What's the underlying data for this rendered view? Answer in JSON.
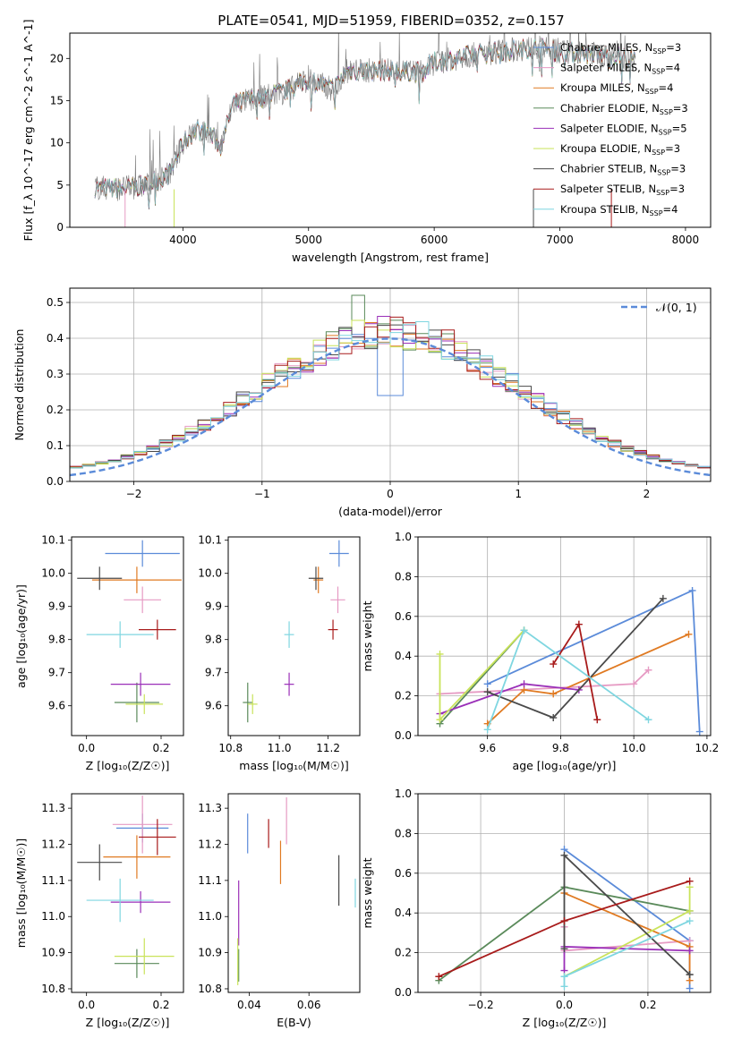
{
  "figure_title": "PLATE=0541, MJD=51959, FIBERID=0352, z=0.157",
  "colors": {
    "Chabrier MILES": "#5b8bd9",
    "Salpeter MILES": "#e69ac3",
    "Kroupa MILES": "#e07a22",
    "Chabrier ELODIE": "#5a8a5a",
    "Salpeter ELODIE": "#9a2fb8",
    "Kroupa ELODIE": "#c9e35a",
    "Chabrier STELIB": "#4a4a4a",
    "Salpeter STELIB": "#a81b1b",
    "Kroupa STELIB": "#7fd6e0",
    "gaussian": "#5b8bd9",
    "grid": "#b0b0b0"
  },
  "chart_data": [
    {
      "id": "spectrum",
      "type": "line",
      "xlabel": "wavelength [Angstrom, rest frame]",
      "ylabel": "Flux [f_λ 10^-17 erg cm^-2 s^-1 A^-1]",
      "xlim": [
        3100,
        8200
      ],
      "ylim": [
        0,
        23
      ],
      "xticks": [
        4000,
        5000,
        6000,
        7000,
        8000
      ],
      "yticks": [
        0,
        5,
        10,
        15,
        20
      ],
      "legend_position": "top-right",
      "legend": [
        {
          "name": "Chabrier MILES",
          "nssp": "3"
        },
        {
          "name": "Salpeter MILES",
          "nssp": "4"
        },
        {
          "name": "Kroupa MILES",
          "nssp": "4"
        },
        {
          "name": "Chabrier ELODIE",
          "nssp": "3"
        },
        {
          "name": "Salpeter ELODIE",
          "nssp": "5"
        },
        {
          "name": "Kroupa ELODIE",
          "nssp": "3"
        },
        {
          "name": "Chabrier STELIB",
          "nssp": "3"
        },
        {
          "name": "Salpeter STELIB",
          "nssp": "3"
        },
        {
          "name": "Kroupa STELIB",
          "nssp": "4"
        }
      ],
      "continuum": [
        [
          3300,
          4.7
        ],
        [
          3500,
          4.6
        ],
        [
          3700,
          4.9
        ],
        [
          3900,
          6.4
        ],
        [
          4000,
          10.0
        ],
        [
          4100,
          11.5
        ],
        [
          4200,
          11.3
        ],
        [
          4300,
          9.5
        ],
        [
          4400,
          14.6
        ],
        [
          4600,
          15.3
        ],
        [
          4800,
          16.0
        ],
        [
          5000,
          17.5
        ],
        [
          5200,
          16.3
        ],
        [
          5300,
          18.5
        ],
        [
          5600,
          18.6
        ],
        [
          5900,
          18.4
        ],
        [
          6000,
          19.5
        ],
        [
          6300,
          20.4
        ],
        [
          6600,
          21.0
        ],
        [
          6800,
          21.3
        ],
        [
          7000,
          20.8
        ],
        [
          7200,
          20.6
        ],
        [
          7400,
          20.4
        ],
        [
          7600,
          19.9
        ]
      ]
    },
    {
      "id": "residuals",
      "type": "histogram",
      "xlabel": "(data-model)/error",
      "ylabel": "Normed distribution",
      "xlim": [
        -2.5,
        2.5
      ],
      "ylim": [
        0,
        0.54
      ],
      "xticks": [
        -2,
        -1,
        0,
        1,
        2
      ],
      "yticks": [
        0.0,
        0.1,
        0.2,
        0.3,
        0.4,
        0.5
      ],
      "legend_position": "top-right",
      "gaussian_label": "𝒩(0, 1)",
      "bin_width": 0.1
    },
    {
      "id": "z-age",
      "type": "errorbar",
      "xlabel": "Z [log₁₀(Z/Z☉)]",
      "ylabel": "age  [log₁₀(age/yr)]",
      "xlim": [
        -0.04,
        0.26
      ],
      "ylim": [
        9.51,
        10.11
      ],
      "xticks": [
        0.0,
        0.2
      ],
      "yticks": [
        9.6,
        9.7,
        9.8,
        9.9,
        10.0,
        10.1
      ],
      "points": [
        {
          "series": "Chabrier MILES",
          "x": 0.15,
          "xerr": 0.1,
          "y": 10.06,
          "yerr": 0.04
        },
        {
          "series": "Salpeter MILES",
          "x": 0.15,
          "xerr": 0.05,
          "y": 9.92,
          "yerr": 0.04
        },
        {
          "series": "Kroupa MILES",
          "x": 0.135,
          "xerr": 0.12,
          "y": 9.98,
          "yerr": 0.04
        },
        {
          "series": "Chabrier ELODIE",
          "x": 0.135,
          "xerr": 0.06,
          "y": 9.61,
          "yerr": 0.06
        },
        {
          "series": "Salpeter ELODIE",
          "x": 0.145,
          "xerr": 0.08,
          "y": 9.665,
          "yerr": 0.035
        },
        {
          "series": "Kroupa ELODIE",
          "x": 0.155,
          "xerr": 0.05,
          "y": 9.605,
          "yerr": 0.03
        },
        {
          "series": "Chabrier STELIB",
          "x": 0.035,
          "xerr": 0.06,
          "y": 9.985,
          "yerr": 0.035
        },
        {
          "series": "Salpeter STELIB",
          "x": 0.19,
          "xerr": 0.05,
          "y": 9.83,
          "yerr": 0.03
        },
        {
          "series": "Kroupa STELIB",
          "x": 0.09,
          "xerr": 0.09,
          "y": 9.815,
          "yerr": 0.04
        }
      ]
    },
    {
      "id": "mass-age",
      "type": "errorbar",
      "xlabel": "mass [log₁₀(M/M☉)]",
      "ylabel": "",
      "xlim": [
        10.79,
        11.33
      ],
      "ylim": [
        9.51,
        10.11
      ],
      "xticks": [
        10.8,
        11.0,
        11.2
      ],
      "yticks": [
        9.6,
        9.7,
        9.8,
        9.9,
        10.0,
        10.1
      ],
      "points": [
        {
          "series": "Chabrier MILES",
          "x": 11.245,
          "xerr": 0.04,
          "y": 10.06,
          "yerr": 0.04
        },
        {
          "series": "Salpeter MILES",
          "x": 11.24,
          "xerr": 0.03,
          "y": 9.92,
          "yerr": 0.04
        },
        {
          "series": "Kroupa MILES",
          "x": 11.16,
          "xerr": 0.02,
          "y": 9.98,
          "yerr": 0.04
        },
        {
          "series": "Chabrier ELODIE",
          "x": 10.87,
          "xerr": 0.02,
          "y": 9.61,
          "yerr": 0.06
        },
        {
          "series": "Salpeter ELODIE",
          "x": 11.04,
          "xerr": 0.02,
          "y": 9.665,
          "yerr": 0.035
        },
        {
          "series": "Kroupa ELODIE",
          "x": 10.89,
          "xerr": 0.02,
          "y": 9.605,
          "yerr": 0.03
        },
        {
          "series": "Chabrier STELIB",
          "x": 11.15,
          "xerr": 0.03,
          "y": 9.985,
          "yerr": 0.035
        },
        {
          "series": "Salpeter STELIB",
          "x": 11.22,
          "xerr": 0.02,
          "y": 9.83,
          "yerr": 0.03
        },
        {
          "series": "Kroupa STELIB",
          "x": 11.04,
          "xerr": 0.02,
          "y": 9.815,
          "yerr": 0.04
        }
      ]
    },
    {
      "id": "age-weight",
      "type": "line",
      "xlabel": "age  [log₁₀(age/yr)]",
      "ylabel": "mass weight",
      "xlim": [
        9.41,
        10.21
      ],
      "ylim": [
        0,
        1
      ],
      "xticks": [
        9.6,
        9.8,
        10.0,
        10.2
      ],
      "yticks": [
        0.0,
        0.2,
        0.4,
        0.6,
        0.8,
        1.0
      ],
      "series": [
        {
          "name": "Chabrier MILES",
          "x": [
            9.6,
            10.16,
            10.18
          ],
          "y": [
            0.26,
            0.73,
            0.02
          ]
        },
        {
          "name": "Salpeter MILES",
          "x": [
            9.47,
            10.0,
            10.04
          ],
          "y": [
            0.21,
            0.26,
            0.33
          ]
        },
        {
          "name": "Kroupa MILES",
          "x": [
            9.6,
            9.7,
            9.78,
            10.15
          ],
          "y": [
            0.06,
            0.23,
            0.21,
            0.51
          ]
        },
        {
          "name": "Chabrier ELODIE",
          "x": [
            9.47,
            9.7
          ],
          "y": [
            0.06,
            0.53
          ]
        },
        {
          "name": "Salpeter ELODIE",
          "x": [
            9.47,
            9.7,
            9.85
          ],
          "y": [
            0.11,
            0.26,
            0.23
          ]
        },
        {
          "name": "Kroupa ELODIE",
          "x": [
            9.47,
            9.47,
            9.7
          ],
          "y": [
            0.41,
            0.08,
            0.53
          ]
        },
        {
          "name": "Chabrier STELIB",
          "x": [
            9.6,
            9.78,
            10.08
          ],
          "y": [
            0.22,
            0.09,
            0.69
          ]
        },
        {
          "name": "Salpeter STELIB",
          "x": [
            9.78,
            9.85,
            9.9
          ],
          "y": [
            0.36,
            0.56,
            0.08
          ]
        },
        {
          "name": "Kroupa STELIB",
          "x": [
            9.6,
            9.7,
            10.04
          ],
          "y": [
            0.03,
            0.53,
            0.08
          ]
        }
      ]
    },
    {
      "id": "z-mass",
      "type": "errorbar",
      "xlabel": "Z [log₁₀(Z/Z☉)]",
      "ylabel": "mass [log₁₀(M/M☉)]",
      "xlim": [
        -0.04,
        0.26
      ],
      "ylim": [
        10.79,
        11.34
      ],
      "xticks": [
        0.0,
        0.2
      ],
      "yticks": [
        10.8,
        10.9,
        11.0,
        11.1,
        11.2,
        11.3
      ],
      "points": [
        {
          "series": "Chabrier MILES",
          "x": 0.15,
          "xerr": 0.07,
          "y": 11.245,
          "yerr": 0.04
        },
        {
          "series": "Salpeter MILES",
          "x": 0.15,
          "xerr": 0.08,
          "y": 11.255,
          "yerr": 0.08
        },
        {
          "series": "Kroupa MILES",
          "x": 0.135,
          "xerr": 0.09,
          "y": 11.165,
          "yerr": 0.06
        },
        {
          "series": "Chabrier ELODIE",
          "x": 0.135,
          "xerr": 0.06,
          "y": 10.87,
          "yerr": 0.04
        },
        {
          "series": "Salpeter ELODIE",
          "x": 0.145,
          "xerr": 0.08,
          "y": 11.04,
          "yerr": 0.03
        },
        {
          "series": "Kroupa ELODIE",
          "x": 0.155,
          "xerr": 0.08,
          "y": 10.89,
          "yerr": 0.05
        },
        {
          "series": "Chabrier STELIB",
          "x": 0.035,
          "xerr": 0.06,
          "y": 11.15,
          "yerr": 0.05
        },
        {
          "series": "Salpeter STELIB",
          "x": 0.19,
          "xerr": 0.05,
          "y": 11.22,
          "yerr": 0.05
        },
        {
          "series": "Kroupa STELIB",
          "x": 0.09,
          "xerr": 0.09,
          "y": 11.045,
          "yerr": 0.06
        }
      ]
    },
    {
      "id": "ebv-mass",
      "type": "errorbar",
      "xlabel": "E(B-V)",
      "ylabel": "",
      "xlim": [
        0.033,
        0.077
      ],
      "ylim": [
        10.79,
        11.34
      ],
      "xticks": [
        0.04,
        0.06
      ],
      "yticks": [
        10.8,
        10.9,
        11.0,
        11.1,
        11.2,
        11.3
      ],
      "points": [
        {
          "series": "Chabrier MILES",
          "x": 0.0395,
          "xerr": 0,
          "y": 11.23,
          "yerr": 0.055
        },
        {
          "series": "Salpeter MILES",
          "x": 0.0525,
          "xerr": 0,
          "y": 11.265,
          "yerr": 0.065
        },
        {
          "series": "Kroupa MILES",
          "x": 0.0505,
          "xerr": 0,
          "y": 11.15,
          "yerr": 0.06
        },
        {
          "series": "Chabrier ELODIE",
          "x": 0.0365,
          "xerr": 0,
          "y": 10.865,
          "yerr": 0.045
        },
        {
          "series": "Salpeter ELODIE",
          "x": 0.0365,
          "xerr": 0,
          "y": 11.01,
          "yerr": 0.09
        },
        {
          "series": "Kroupa ELODIE",
          "x": 0.0362,
          "xerr": 0,
          "y": 10.875,
          "yerr": 0.065
        },
        {
          "series": "Chabrier STELIB",
          "x": 0.07,
          "xerr": 0,
          "y": 11.1,
          "yerr": 0.07
        },
        {
          "series": "Salpeter STELIB",
          "x": 0.0465,
          "xerr": 0,
          "y": 11.23,
          "yerr": 0.04
        },
        {
          "series": "Kroupa STELIB",
          "x": 0.0755,
          "xerr": 0,
          "y": 11.065,
          "yerr": 0.04
        }
      ]
    },
    {
      "id": "z-weight",
      "type": "line",
      "xlabel": "Z [log₁₀(Z/Z☉)]",
      "ylabel": "mass weight",
      "xlim": [
        -0.35,
        0.35
      ],
      "ylim": [
        0,
        1
      ],
      "xticks": [
        -0.2,
        0.0,
        0.2
      ],
      "yticks": [
        0.0,
        0.2,
        0.4,
        0.6,
        0.8,
        1.0
      ],
      "series": [
        {
          "name": "Chabrier MILES",
          "x": [
            0.0,
            0.3,
            0.3,
            0.3
          ],
          "y": [
            0.72,
            0.26,
            0.02,
            0.26
          ]
        },
        {
          "name": "Salpeter MILES",
          "x": [
            0.0,
            0.0,
            0.3
          ],
          "y": [
            0.33,
            0.21,
            0.26
          ]
        },
        {
          "name": "Kroupa MILES",
          "x": [
            0.0,
            0.3,
            0.3
          ],
          "y": [
            0.5,
            0.23,
            0.06
          ]
        },
        {
          "name": "Chabrier ELODIE",
          "x": [
            -0.3,
            0.0,
            0.3
          ],
          "y": [
            0.06,
            0.53,
            0.41
          ]
        },
        {
          "name": "Salpeter ELODIE",
          "x": [
            0.0,
            0.0,
            0.3
          ],
          "y": [
            0.11,
            0.23,
            0.21
          ]
        },
        {
          "name": "Kroupa ELODIE",
          "x": [
            0.0,
            0.3,
            0.3
          ],
          "y": [
            0.08,
            0.41,
            0.53
          ]
        },
        {
          "name": "Chabrier STELIB",
          "x": [
            0.0,
            0.0,
            0.3,
            0.3
          ],
          "y": [
            0.22,
            0.69,
            0.09,
            0.09
          ]
        },
        {
          "name": "Salpeter STELIB",
          "x": [
            -0.3,
            0.0,
            0.3
          ],
          "y": [
            0.08,
            0.36,
            0.56
          ]
        },
        {
          "name": "Kroupa STELIB",
          "x": [
            0.0,
            0.0,
            0.3
          ],
          "y": [
            0.03,
            0.08,
            0.36
          ]
        }
      ]
    }
  ]
}
